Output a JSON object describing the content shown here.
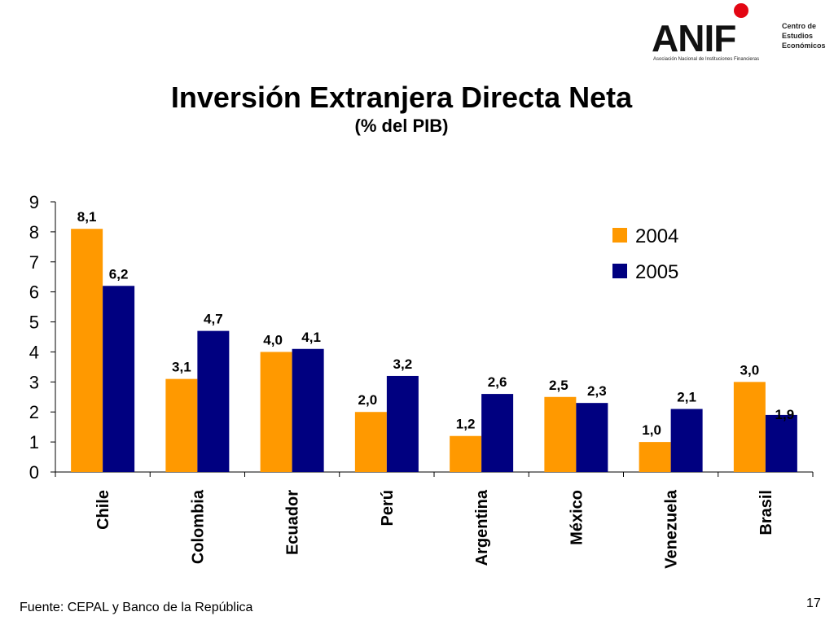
{
  "logo": {
    "wordmark": "ANIF",
    "side_text": [
      "Centro de",
      "Estudios",
      "Económicos"
    ],
    "subtext": "Asociación Nacional de Instituciones Financieras",
    "dot_color": "#e30613"
  },
  "chart_data": {
    "type": "bar",
    "title": "Inversión Extranjera Directa Neta",
    "subtitle": "(% del PIB)",
    "categories": [
      "Chile",
      "Colombia",
      "Ecuador",
      "Perú",
      "Argentina",
      "México",
      "Venezuela",
      "Brasil"
    ],
    "series": [
      {
        "name": "2004",
        "color": "#ff9900",
        "values": [
          8.1,
          3.1,
          4.0,
          2.0,
          1.2,
          2.5,
          1.0,
          3.0
        ],
        "labels": [
          "8,1",
          "3,1",
          "4,0",
          "2,0",
          "1,2",
          "2,5",
          "1,0",
          "3,0"
        ]
      },
      {
        "name": "2005",
        "color": "#000080",
        "values": [
          6.2,
          4.7,
          4.1,
          3.2,
          2.6,
          2.3,
          2.1,
          1.9
        ],
        "labels": [
          "6,2",
          "4,7",
          "4,1",
          "3,2",
          "2,6",
          "2,3",
          "2,1",
          "1,9"
        ]
      }
    ],
    "ylim": [
      0,
      9
    ],
    "yticks": [
      0,
      1,
      2,
      3,
      4,
      5,
      6,
      7,
      8,
      9
    ],
    "xlabel": "",
    "ylabel": "",
    "grid": false,
    "legend_position": "top-right"
  },
  "footer": {
    "source": "Fuente: CEPAL y Banco de la República",
    "page_number": "17"
  }
}
